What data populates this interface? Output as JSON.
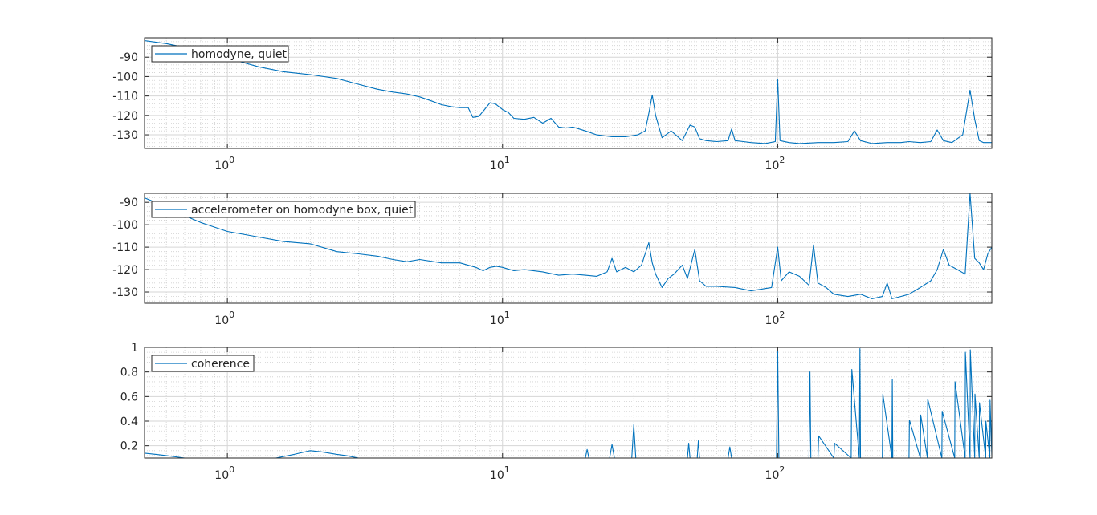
{
  "chart_data": [
    {
      "type": "line",
      "title": "",
      "xlabel": "",
      "ylabel": "",
      "xscale": "log",
      "xlim": [
        0.5,
        600
      ],
      "ylim": [
        -137,
        -80
      ],
      "yticks": [
        -130,
        -120,
        -110,
        -100,
        -90
      ],
      "ytick_labels": [
        "-130",
        "-120",
        "-110",
        "-100",
        "-90"
      ],
      "xticks": [
        1,
        10,
        100
      ],
      "xtick_labels": [
        {
          "base": "10",
          "exp": "0"
        },
        {
          "base": "10",
          "exp": "1"
        },
        {
          "base": "10",
          "exp": "2"
        }
      ],
      "grid": true,
      "minor_grid": true,
      "legend_position": "top-left",
      "color": "#0072BD",
      "series": [
        {
          "name": "homodyne, quiet",
          "x": [
            0.5,
            0.6,
            0.7,
            0.8,
            1.0,
            1.3,
            1.6,
            2.0,
            2.5,
            3.0,
            3.5,
            4.0,
            4.5,
            5.0,
            5.5,
            6.0,
            6.5,
            7.0,
            7.5,
            7.8,
            8.2,
            8.6,
            9.0,
            9.4,
            10.0,
            10.5,
            11.0,
            12.0,
            13.0,
            14.0,
            15.0,
            16.0,
            17.0,
            18.0,
            19.0,
            20.0,
            22.0,
            25.0,
            28.0,
            31.0,
            33.0,
            34.0,
            35.0,
            36.0,
            38.0,
            41.0,
            45.0,
            48.0,
            50.0,
            52.0,
            55.0,
            60.0,
            66.0,
            68.0,
            70.0,
            75.0,
            80.0,
            90.0,
            98.0,
            100.0,
            102.0,
            110.0,
            120.0,
            140.0,
            160.0,
            180.0,
            190.0,
            200.0,
            220.0,
            250.0,
            280.0,
            300.0,
            330.0,
            360.0,
            380.0,
            400.0,
            430.0,
            470.0,
            500.0,
            520.0,
            540.0,
            560.0,
            600.0
          ],
          "values": [
            -81.5,
            -83,
            -85,
            -87,
            -90.5,
            -95,
            -97.5,
            -99,
            -101,
            -104,
            -106.5,
            -108,
            -109,
            -110.5,
            -112.5,
            -114.5,
            -115.5,
            -116,
            -116,
            -121,
            -120.5,
            -117,
            -113.5,
            -114,
            -117,
            -118.5,
            -121.5,
            -122,
            -121,
            -124,
            -121.5,
            -126,
            -126.5,
            -126,
            -127,
            -128,
            -130,
            -131,
            -131,
            -130,
            -128,
            -119,
            -109.5,
            -120,
            -131.5,
            -128,
            -133,
            -125,
            -126,
            -132,
            -133,
            -133.5,
            -133,
            -127,
            -133,
            -133.5,
            -134,
            -134.5,
            -133.5,
            -101.5,
            -133,
            -134,
            -134.5,
            -134,
            -134,
            -133.5,
            -128,
            -133,
            -134.5,
            -134,
            -134,
            -133.5,
            -134,
            -133.5,
            -127.5,
            -133,
            -134,
            -130,
            -107,
            -122,
            -133,
            -134,
            -134
          ]
        }
      ]
    },
    {
      "type": "line",
      "title": "",
      "xlabel": "",
      "ylabel": "",
      "xscale": "log",
      "xlim": [
        0.5,
        600
      ],
      "ylim": [
        -135,
        -86
      ],
      "yticks": [
        -130,
        -120,
        -110,
        -100,
        -90
      ],
      "ytick_labels": [
        "-130",
        "-120",
        "-110",
        "-100",
        "-90"
      ],
      "xticks": [
        1,
        10,
        100
      ],
      "xtick_labels": [
        {
          "base": "10",
          "exp": "0"
        },
        {
          "base": "10",
          "exp": "1"
        },
        {
          "base": "10",
          "exp": "2"
        }
      ],
      "grid": true,
      "minor_grid": true,
      "legend_position": "top-left",
      "color": "#0072BD",
      "series": [
        {
          "name": "accelerometer on homodyne box, quiet",
          "x": [
            0.5,
            0.6,
            0.7,
            0.8,
            1.0,
            1.3,
            1.6,
            2.0,
            2.5,
            3.0,
            3.5,
            4.0,
            4.5,
            5.0,
            6.0,
            7.0,
            8.0,
            8.5,
            9.0,
            9.5,
            10.0,
            11.0,
            12.0,
            14.0,
            16.0,
            18.0,
            20.0,
            22.0,
            24.0,
            25.0,
            26.0,
            28.0,
            30.0,
            32.0,
            34.0,
            35.0,
            36.0,
            38.0,
            40.0,
            42.0,
            45.0,
            47.0,
            50.0,
            52.0,
            55.0,
            60.0,
            70.0,
            80.0,
            95.0,
            100.0,
            103.0,
            110.0,
            120.0,
            130.0,
            135.0,
            140.0,
            150.0,
            160.0,
            180.0,
            200.0,
            220.0,
            240.0,
            250.0,
            260.0,
            280.0,
            300.0,
            330.0,
            360.0,
            380.0,
            400.0,
            420.0,
            450.0,
            480.0,
            500.0,
            520.0,
            540.0,
            560.0,
            580.0,
            600.0
          ],
          "values": [
            -88,
            -92,
            -96,
            -99,
            -103,
            -105.5,
            -107.5,
            -108.5,
            -112,
            -113,
            -114,
            -115.5,
            -116.5,
            -115.5,
            -117,
            -117,
            -119,
            -120.5,
            -119,
            -118.5,
            -119,
            -120.5,
            -120,
            -121,
            -122.5,
            -122,
            -122.5,
            -123,
            -121,
            -115,
            -121,
            -119,
            -121,
            -118,
            -108,
            -117,
            -122,
            -128,
            -124,
            -122,
            -118,
            -124,
            -111,
            -125,
            -127.5,
            -127.5,
            -128,
            -129.5,
            -128,
            -110,
            -125,
            -121,
            -123,
            -127,
            -109,
            -126,
            -128,
            -131,
            -132,
            -131,
            -133,
            -132,
            -126,
            -133,
            -132,
            -131,
            -128,
            -125,
            -120,
            -111,
            -118,
            -120,
            -122,
            -86,
            -115,
            -117,
            -120,
            -113,
            -110
          ]
        }
      ]
    },
    {
      "type": "line",
      "title": "",
      "xlabel": "",
      "ylabel": "",
      "xscale": "log",
      "xlim": [
        0.5,
        600
      ],
      "ylim": [
        0.1,
        1.0
      ],
      "yticks": [
        0.2,
        0.4,
        0.6,
        0.8,
        1
      ],
      "ytick_labels": [
        "0.2",
        "0.4",
        "0.6",
        "0.8",
        "1"
      ],
      "xticks": [
        1,
        10,
        100
      ],
      "xtick_labels": [
        {
          "base": "10",
          "exp": "0"
        },
        {
          "base": "10",
          "exp": "1"
        },
        {
          "base": "10",
          "exp": "2"
        }
      ],
      "grid": true,
      "minor_grid": true,
      "legend_position": "top-left",
      "color": "#0072BD",
      "series": [
        {
          "name": "coherence",
          "x": [
            0.5,
            0.55,
            0.6,
            0.65,
            0.7,
            1.5,
            1.75,
            2.0,
            2.2,
            2.5,
            2.7,
            3.0,
            20.0,
            20.3,
            20.6,
            24.5,
            25.0,
            25.5,
            29.5,
            30.0,
            30.5,
            47.0,
            47.5,
            48.0,
            51.0,
            51.5,
            52.0,
            66.0,
            67.0,
            68.0,
            99.0,
            100.0,
            101.0,
            130.0,
            131.0,
            132.0,
            140.0,
            141.0,
            160.0,
            161.0,
            185.0,
            186.0,
            198.0,
            199.0,
            200.0,
            240.0,
            241.0,
            260.0,
            261.0,
            262.0,
            300.0,
            301.0,
            330.0,
            331.0,
            350.0,
            351.0,
            395.0,
            396.0,
            440.0,
            441.0,
            480.0,
            481.0,
            500.0,
            501.0,
            520.0,
            521.0,
            540.0,
            541.0,
            570.0,
            571.0,
            590.0,
            591.0,
            600.0
          ],
          "values": [
            0.14,
            0.13,
            0.12,
            0.11,
            0.1,
            0.1,
            0.13,
            0.16,
            0.15,
            0.13,
            0.12,
            0.1,
            0.1,
            0.17,
            0.1,
            0.1,
            0.21,
            0.1,
            0.1,
            0.37,
            0.1,
            0.1,
            0.22,
            0.1,
            0.1,
            0.24,
            0.1,
            0.1,
            0.19,
            0.1,
            0.1,
            0.97,
            0.1,
            0.1,
            0.8,
            0.1,
            0.1,
            0.28,
            0.1,
            0.22,
            0.1,
            0.82,
            0.1,
            0.99,
            0.1,
            0.1,
            0.62,
            0.1,
            0.74,
            0.1,
            0.1,
            0.41,
            0.1,
            0.45,
            0.1,
            0.58,
            0.1,
            0.48,
            0.1,
            0.72,
            0.1,
            0.96,
            0.1,
            0.98,
            0.1,
            0.62,
            0.1,
            0.55,
            0.1,
            0.4,
            0.1,
            0.57,
            0.12
          ]
        }
      ]
    }
  ]
}
